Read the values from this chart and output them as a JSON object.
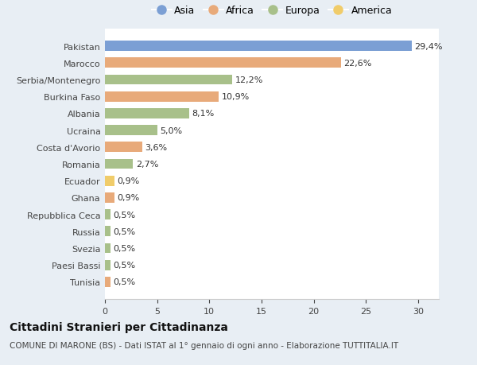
{
  "countries": [
    "Pakistan",
    "Marocco",
    "Serbia/Montenegro",
    "Burkina Faso",
    "Albania",
    "Ucraina",
    "Costa d'Avorio",
    "Romania",
    "Ecuador",
    "Ghana",
    "Repubblica Ceca",
    "Russia",
    "Svezia",
    "Paesi Bassi",
    "Tunisia"
  ],
  "values": [
    29.4,
    22.6,
    12.2,
    10.9,
    8.1,
    5.0,
    3.6,
    2.7,
    0.9,
    0.9,
    0.5,
    0.5,
    0.5,
    0.5,
    0.5
  ],
  "continents": [
    "Asia",
    "Africa",
    "Europa",
    "Africa",
    "Europa",
    "Europa",
    "Africa",
    "Europa",
    "America",
    "Africa",
    "Europa",
    "Europa",
    "Europa",
    "Europa",
    "Africa"
  ],
  "colors": {
    "Asia": "#7b9fd4",
    "Africa": "#e8aa7a",
    "Europa": "#a8c08a",
    "America": "#f0cc6a"
  },
  "legend_order": [
    "Asia",
    "Africa",
    "Europa",
    "America"
  ],
  "title": "Cittadini Stranieri per Cittadinanza",
  "subtitle": "COMUNE DI MARONE (BS) - Dati ISTAT al 1° gennaio di ogni anno - Elaborazione TUTTITALIA.IT",
  "xlim": [
    0,
    32
  ],
  "xticks": [
    0,
    5,
    10,
    15,
    20,
    25,
    30
  ],
  "fig_background": "#e8eef4",
  "plot_background": "#ffffff",
  "bar_height": 0.6,
  "label_fontsize": 8,
  "tick_fontsize": 8,
  "title_fontsize": 10,
  "subtitle_fontsize": 7.5
}
